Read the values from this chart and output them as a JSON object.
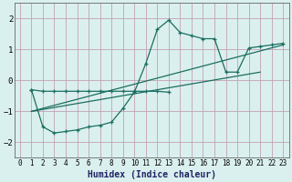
{
  "bg_color": "#daf0ee",
  "grid_color": "#c4a0b5",
  "line_color": "#1a6e60",
  "xlabel": "Humidex (Indice chaleur)",
  "ylim": [
    -2.5,
    2.5
  ],
  "xlim": [
    -0.5,
    23.5
  ],
  "yticks": [
    -2,
    -1,
    0,
    1,
    2
  ],
  "xticks": [
    0,
    1,
    2,
    3,
    4,
    5,
    6,
    7,
    8,
    9,
    10,
    11,
    12,
    13,
    14,
    15,
    16,
    17,
    18,
    19,
    20,
    21,
    22,
    23
  ],
  "line1_x": [
    1,
    2,
    3,
    4,
    5,
    6,
    7,
    8,
    9,
    10,
    11,
    12,
    13,
    14,
    15,
    16,
    17,
    18,
    19,
    20,
    21,
    22,
    23
  ],
  "line1_y": [
    -0.3,
    -1.5,
    -1.7,
    -1.65,
    -1.6,
    -1.5,
    -1.45,
    -1.35,
    -0.9,
    -0.38,
    0.55,
    1.65,
    1.95,
    1.55,
    1.45,
    1.35,
    1.35,
    0.27,
    0.27,
    1.05,
    1.1,
    1.15,
    1.2
  ],
  "line2_x": [
    1,
    2,
    3,
    4,
    5,
    6,
    7,
    8,
    9,
    10,
    11,
    12,
    13
  ],
  "line2_y": [
    -0.3,
    -0.35,
    -0.35,
    -0.35,
    -0.35,
    -0.35,
    -0.35,
    -0.35,
    -0.35,
    -0.35,
    -0.35,
    -0.35,
    -0.38
  ],
  "line3_x": [
    1,
    23
  ],
  "line3_y": [
    -1.0,
    1.15
  ],
  "line4_x": [
    1,
    21
  ],
  "line4_y": [
    -1.0,
    0.27
  ]
}
